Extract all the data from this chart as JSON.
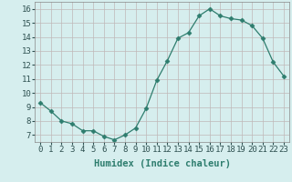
{
  "x": [
    0,
    1,
    2,
    3,
    4,
    5,
    6,
    7,
    8,
    9,
    10,
    11,
    12,
    13,
    14,
    15,
    16,
    17,
    18,
    19,
    20,
    21,
    22,
    23
  ],
  "y": [
    9.3,
    8.7,
    8.0,
    7.8,
    7.3,
    7.3,
    6.9,
    6.65,
    7.0,
    7.5,
    8.9,
    10.9,
    12.3,
    13.9,
    14.3,
    15.5,
    16.0,
    15.5,
    15.3,
    15.2,
    14.8,
    13.9,
    12.2,
    11.2
  ],
  "line_color": "#2e7d6e",
  "marker": "D",
  "marker_size": 2.5,
  "bg_color": "#d6eeee",
  "grid_color": "#c0b8b8",
  "xlabel": "Humidex (Indice chaleur)",
  "ylim": [
    6.5,
    16.5
  ],
  "xlim": [
    -0.5,
    23.5
  ],
  "yticks": [
    7,
    8,
    9,
    10,
    11,
    12,
    13,
    14,
    15,
    16
  ],
  "xticks": [
    0,
    1,
    2,
    3,
    4,
    5,
    6,
    7,
    8,
    9,
    10,
    11,
    12,
    13,
    14,
    15,
    16,
    17,
    18,
    19,
    20,
    21,
    22,
    23
  ],
  "tick_label_fontsize": 6.5,
  "xlabel_fontsize": 7.5
}
